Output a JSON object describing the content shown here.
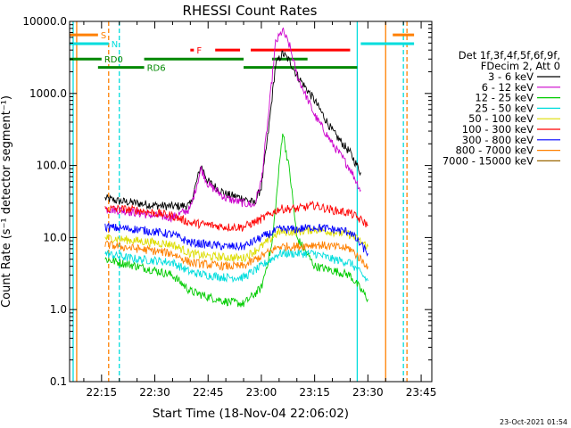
{
  "chart_data": {
    "type": "line",
    "title": "RHESSI Count Rates",
    "xlabel": "Start Time (18-Nov-04 22:06:02)",
    "ylabel": "Count Rate (s⁻¹ detector segment⁻¹)",
    "y_scale": "log",
    "ylim": [
      0.1,
      10000
    ],
    "xlim": [
      "22:06",
      "23:48"
    ],
    "x_ticks": [
      "22:15",
      "22:30",
      "22:45",
      "23:00",
      "23:15",
      "23:30",
      "23:45"
    ],
    "y_ticks": [
      "0.1",
      "1.0",
      "10.0",
      "100.0",
      "1000.0",
      "10000.0"
    ],
    "legend_header": [
      "Det 1f,3f,4f,5f,6f,9f,",
      "FDecim 2, Att 0"
    ],
    "legend_position": "right",
    "series": [
      {
        "name": "3 - 6 keV",
        "color": "#000000",
        "points": [
          [
            "22:16",
            35
          ],
          [
            "22:20",
            32
          ],
          [
            "22:25",
            30
          ],
          [
            "22:30",
            28
          ],
          [
            "22:35",
            27
          ],
          [
            "22:40",
            28
          ],
          [
            "22:43",
            100
          ],
          [
            "22:45",
            60
          ],
          [
            "22:50",
            40
          ],
          [
            "22:55",
            35
          ],
          [
            "22:58",
            30
          ],
          [
            "23:00",
            50
          ],
          [
            "23:02",
            300
          ],
          [
            "23:04",
            2500
          ],
          [
            "23:06",
            3600
          ],
          [
            "23:08",
            2800
          ],
          [
            "23:10",
            1800
          ],
          [
            "23:15",
            800
          ],
          [
            "23:20",
            300
          ],
          [
            "23:25",
            150
          ],
          [
            "23:28",
            80
          ]
        ]
      },
      {
        "name": "6 - 12 keV",
        "color": "#cc00cc",
        "points": [
          [
            "22:16",
            25
          ],
          [
            "22:20",
            24
          ],
          [
            "22:25",
            22
          ],
          [
            "22:30",
            20
          ],
          [
            "22:35",
            19
          ],
          [
            "22:40",
            25
          ],
          [
            "22:43",
            90
          ],
          [
            "22:45",
            55
          ],
          [
            "22:50",
            35
          ],
          [
            "22:55",
            30
          ],
          [
            "22:58",
            28
          ],
          [
            "23:00",
            60
          ],
          [
            "23:02",
            500
          ],
          [
            "23:04",
            5000
          ],
          [
            "23:06",
            7500
          ],
          [
            "23:08",
            4500
          ],
          [
            "23:10",
            1800
          ],
          [
            "23:15",
            500
          ],
          [
            "23:20",
            200
          ],
          [
            "23:25",
            90
          ],
          [
            "23:28",
            45
          ]
        ]
      },
      {
        "name": "12 - 25 keV",
        "color": "#00cc00",
        "points": [
          [
            "22:16",
            5
          ],
          [
            "22:20",
            4.5
          ],
          [
            "22:25",
            4
          ],
          [
            "22:30",
            3.5
          ],
          [
            "22:35",
            3
          ],
          [
            "22:40",
            1.8
          ],
          [
            "22:45",
            1.5
          ],
          [
            "22:50",
            1.3
          ],
          [
            "22:55",
            1.2
          ],
          [
            "23:00",
            2
          ],
          [
            "23:03",
            8
          ],
          [
            "23:06",
            300
          ],
          [
            "23:08",
            80
          ],
          [
            "23:10",
            10
          ],
          [
            "23:15",
            4
          ],
          [
            "23:20",
            3.5
          ],
          [
            "23:25",
            3
          ],
          [
            "23:30",
            1.4
          ]
        ]
      },
      {
        "name": "25 - 50 keV",
        "color": "#00dddd",
        "points": [
          [
            "22:16",
            6
          ],
          [
            "22:20",
            5.5
          ],
          [
            "22:25",
            5
          ],
          [
            "22:30",
            4.8
          ],
          [
            "22:35",
            4.5
          ],
          [
            "22:40",
            3.3
          ],
          [
            "22:45",
            3
          ],
          [
            "22:50",
            2.8
          ],
          [
            "22:55",
            2.8
          ],
          [
            "23:00",
            4
          ],
          [
            "23:05",
            6
          ],
          [
            "23:10",
            6
          ],
          [
            "23:15",
            6
          ],
          [
            "23:20",
            5
          ],
          [
            "23:25",
            4.5
          ],
          [
            "23:30",
            2.5
          ]
        ]
      },
      {
        "name": "50 - 100 keV",
        "color": "#dddd00",
        "points": [
          [
            "22:16",
            10
          ],
          [
            "22:20",
            9.5
          ],
          [
            "22:25",
            9
          ],
          [
            "22:30",
            8.5
          ],
          [
            "22:35",
            8
          ],
          [
            "22:40",
            6
          ],
          [
            "22:45",
            5.5
          ],
          [
            "22:50",
            5.3
          ],
          [
            "22:55",
            5.2
          ],
          [
            "23:00",
            7.5
          ],
          [
            "23:05",
            12
          ],
          [
            "23:10",
            12
          ],
          [
            "23:15",
            13
          ],
          [
            "23:20",
            12
          ],
          [
            "23:25",
            11
          ],
          [
            "23:30",
            7.5
          ]
        ]
      },
      {
        "name": "100 - 300 keV",
        "color": "#ff0000",
        "points": [
          [
            "22:16",
            25
          ],
          [
            "22:20",
            25
          ],
          [
            "22:25",
            24
          ],
          [
            "22:30",
            22
          ],
          [
            "22:35",
            20
          ],
          [
            "22:40",
            16
          ],
          [
            "22:45",
            15
          ],
          [
            "22:50",
            14
          ],
          [
            "22:55",
            14
          ],
          [
            "23:00",
            18
          ],
          [
            "23:05",
            25
          ],
          [
            "23:10",
            25
          ],
          [
            "23:15",
            28
          ],
          [
            "23:20",
            24
          ],
          [
            "23:25",
            22
          ],
          [
            "23:30",
            15
          ]
        ]
      },
      {
        "name": "300 - 800 keV",
        "color": "#0000ff",
        "points": [
          [
            "22:16",
            14
          ],
          [
            "22:20",
            13.5
          ],
          [
            "22:25",
            13
          ],
          [
            "22:30",
            12
          ],
          [
            "22:35",
            11
          ],
          [
            "22:40",
            8.5
          ],
          [
            "22:45",
            8
          ],
          [
            "22:50",
            7.5
          ],
          [
            "22:55",
            7.5
          ],
          [
            "23:00",
            10
          ],
          [
            "23:05",
            13
          ],
          [
            "23:10",
            13
          ],
          [
            "23:15",
            14
          ],
          [
            "23:20",
            13
          ],
          [
            "23:25",
            12
          ],
          [
            "23:30",
            6
          ]
        ]
      },
      {
        "name": "800 - 7000 keV",
        "color": "#ff8000",
        "points": [
          [
            "22:16",
            8
          ],
          [
            "22:20",
            7.5
          ],
          [
            "22:25",
            7
          ],
          [
            "22:30",
            6.5
          ],
          [
            "22:35",
            6
          ],
          [
            "22:40",
            4.5
          ],
          [
            "22:45",
            4.2
          ],
          [
            "22:50",
            4
          ],
          [
            "22:55",
            4
          ],
          [
            "23:00",
            5.5
          ],
          [
            "23:05",
            7.5
          ],
          [
            "23:10",
            7.5
          ],
          [
            "23:15",
            8
          ],
          [
            "23:20",
            7.5
          ],
          [
            "23:25",
            7
          ],
          [
            "23:30",
            4
          ]
        ]
      },
      {
        "name": "7000 - 15000 keV",
        "color": "#996600",
        "points": []
      }
    ],
    "flag_bars": [
      {
        "label": "S",
        "color": "#ff8000",
        "spans": [
          [
            "22:06",
            "22:14"
          ],
          [
            "23:37",
            "23:43"
          ]
        ],
        "y": 6500
      },
      {
        "label": "N",
        "color": "#00dddd",
        "spans": [
          [
            "22:06",
            "22:17"
          ],
          [
            "23:28",
            "23:43"
          ]
        ],
        "y": 4900
      },
      {
        "label": "F",
        "color": "#ff0000",
        "spans": [
          [
            "22:40",
            "22:41"
          ],
          [
            "22:47",
            "22:54"
          ],
          [
            "22:57",
            "23:25"
          ]
        ],
        "y": 4000
      },
      {
        "label": "RD0",
        "color": "#008800",
        "spans": [
          [
            "22:06",
            "22:15"
          ],
          [
            "22:27",
            "22:55"
          ],
          [
            "23:03",
            "23:13"
          ]
        ],
        "y": 3000
      },
      {
        "label": "RD6",
        "color": "#008800",
        "spans": [
          [
            "22:14",
            "22:27"
          ],
          [
            "22:55",
            "23:27"
          ]
        ],
        "y": 2300
      }
    ],
    "vertical_markers": [
      {
        "color": "#00dddd",
        "dash": "solid",
        "x": "22:07"
      },
      {
        "color": "#ff8000",
        "dash": "solid",
        "x": "22:08"
      },
      {
        "color": "#ff8000",
        "dash": "dashed",
        "x": "22:17"
      },
      {
        "color": "#00dddd",
        "dash": "dashed",
        "x": "22:20"
      },
      {
        "color": "#00dddd",
        "dash": "solid",
        "x": "23:27"
      },
      {
        "color": "#ff8000",
        "dash": "solid",
        "x": "23:35"
      },
      {
        "color": "#00dddd",
        "dash": "dashed",
        "x": "23:40"
      },
      {
        "color": "#ff8000",
        "dash": "dashed",
        "x": "23:41"
      }
    ]
  },
  "footer_timestamp": "23-Oct-2021 01:54"
}
